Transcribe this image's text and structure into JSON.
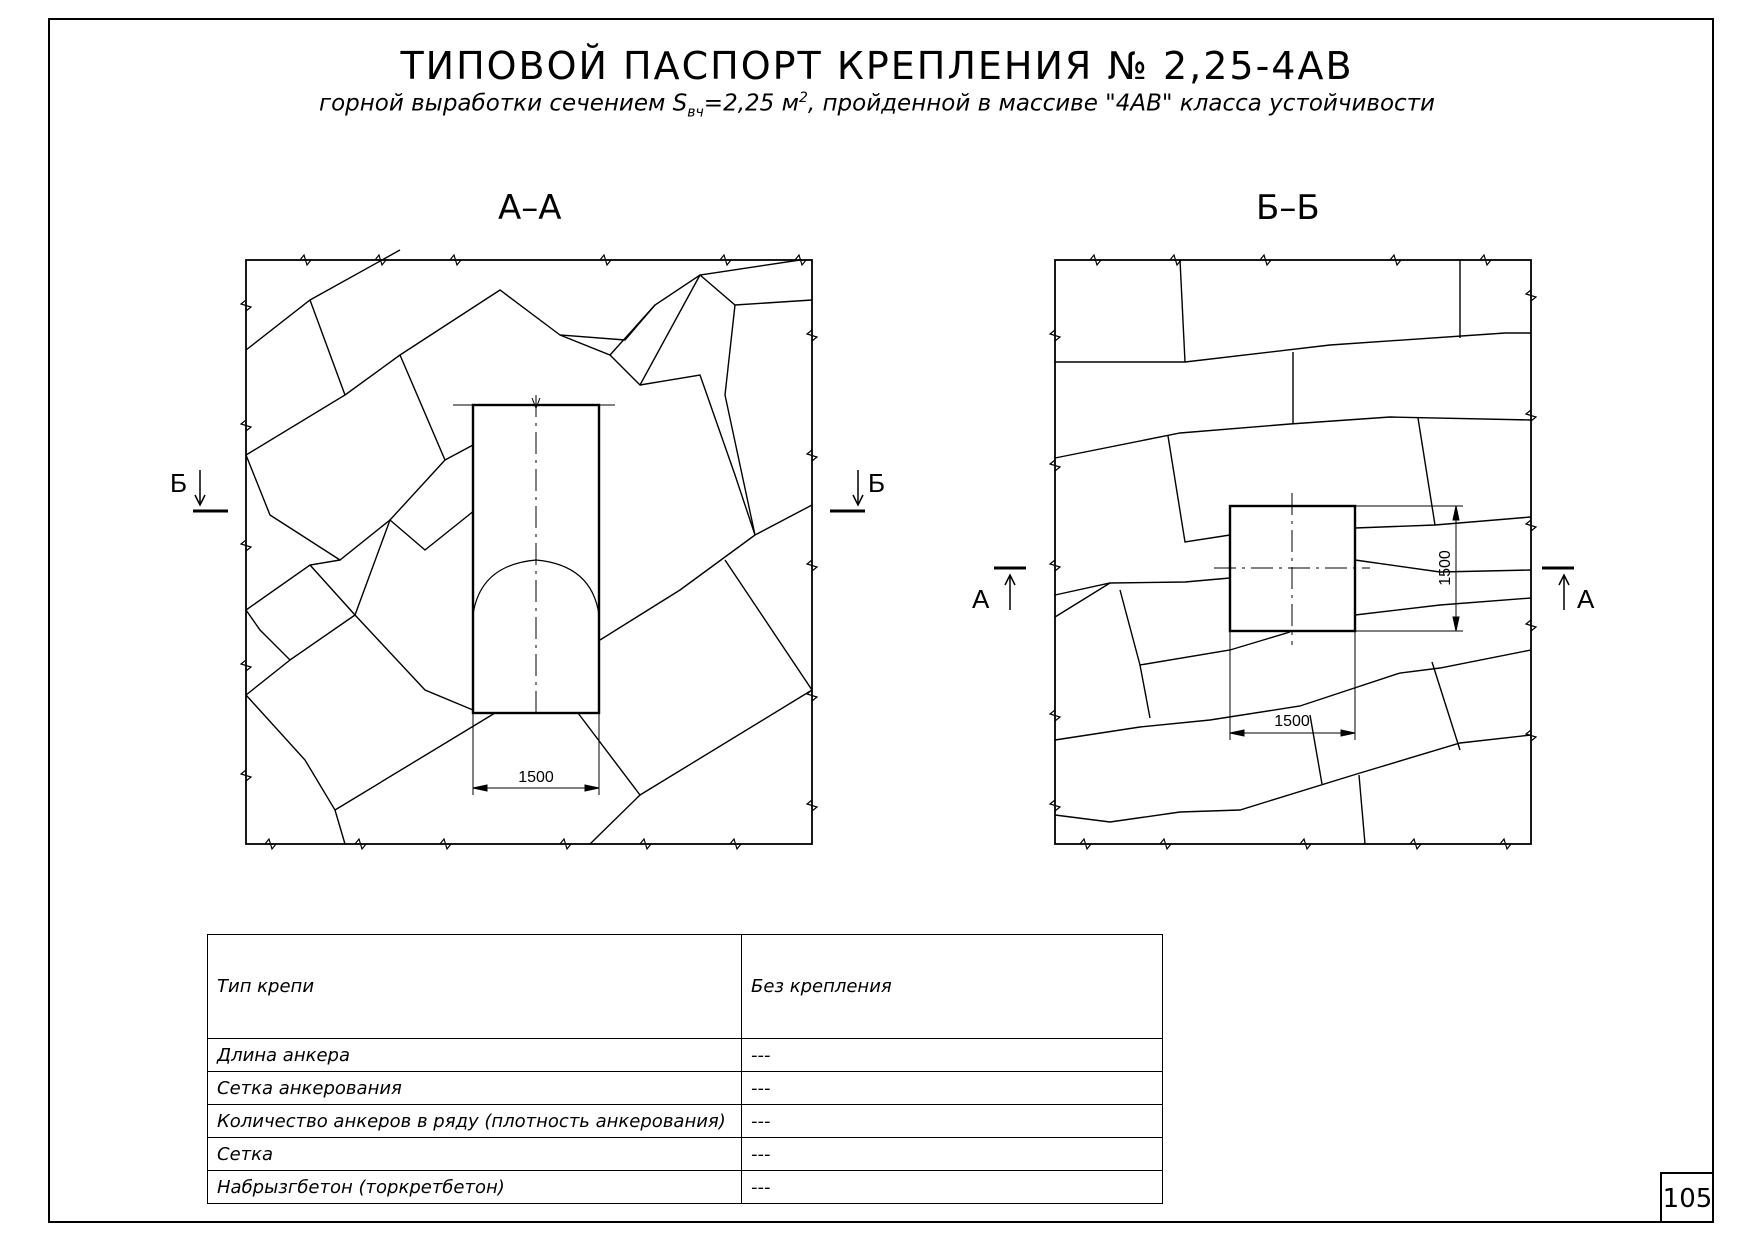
{
  "title": "ТИПОВОЙ ПАСПОРТ КРЕПЛЕНИЯ № 2,25-4АВ",
  "subtitle": {
    "before": "горной выработки сечением S",
    "sub": "вч",
    "middle": "=2,25 м",
    "sup": "2",
    "after": ", пройденной в массиве \"4АВ\" класса устойчивости"
  },
  "views": {
    "aa": {
      "label": "А–А",
      "dimension": "1500",
      "cut_mark_left": "Б",
      "cut_mark_right": "Б"
    },
    "bb": {
      "label": "Б–Б",
      "dimension_horizontal": "1500",
      "dimension_vertical": "1500",
      "cut_mark_left": "А",
      "cut_mark_right": "А"
    }
  },
  "table": {
    "header": {
      "label": "Тип крепи",
      "value": "Без крепления"
    },
    "rows": [
      {
        "label": "Длина анкера",
        "value": "---"
      },
      {
        "label": "Сетка анкерования",
        "value": "---"
      },
      {
        "label": "Количество анкеров в ряду (плотность анкерования)",
        "value": "---"
      },
      {
        "label": "Сетка",
        "value": "---"
      },
      {
        "label": "Набрызгбетон (торкретбетон)",
        "value": "---"
      }
    ]
  },
  "page_number": "105"
}
